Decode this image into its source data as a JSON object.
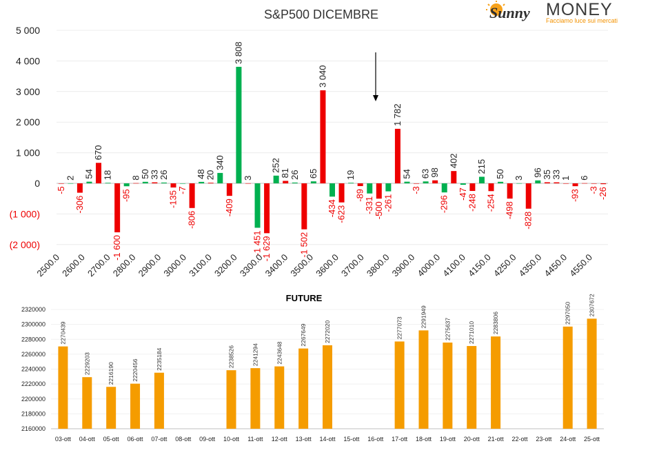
{
  "logo": {
    "brand_left": "Sunny",
    "brand_right": "MONEY",
    "tagline": "Facciamo luce sui mercati"
  },
  "chart_data": [
    {
      "type": "bar",
      "title": "S&P500 DICEMBRE",
      "ylim": [
        -2000,
        5000
      ],
      "yticks": [
        5000,
        4000,
        3000,
        2000,
        1000,
        0,
        -1000,
        -2000
      ],
      "ytick_labels": [
        "5 000",
        "4 000",
        "3 000",
        "2 000",
        "1 000",
        "0",
        "(1 000)",
        "(2 000)"
      ],
      "grid": true,
      "x_labels": [
        "2500.0",
        "2600.0",
        "2700.0",
        "2800.0",
        "2900.0",
        "3000.0",
        "3100.0",
        "3200.0",
        "3300.0",
        "3400.0",
        "3500.0",
        "3600.0",
        "3700.0",
        "3800.0",
        "3900.0",
        "4000.0",
        "4100.0",
        "4150.0",
        "4250.0",
        "4350.0",
        "4450.0",
        "4550.0"
      ],
      "colors": {
        "red": "#ee0000",
        "green": "#00b050",
        "positive_label": "#222222",
        "negative_label": "#ee0000"
      },
      "annotation": "down-arrow above 3800.0",
      "series": [
        {
          "color": "red",
          "values": [
            -5,
            -306,
            670,
            -1600,
            8,
            33,
            -135,
            -806,
            20,
            -409,
            3,
            -1629,
            81,
            -1502,
            3040,
            -623,
            -89,
            -500,
            1782,
            -3,
            98,
            402,
            -248,
            -254,
            -498,
            -828,
            35,
            33,
            1,
            -93,
            6,
            -3,
            -26
          ]
        },
        {
          "color": "green",
          "values": [
            2,
            54,
            18,
            -95,
            50,
            26,
            -7,
            48,
            340,
            3808,
            -1451,
            252,
            26,
            65,
            -434,
            19,
            -331,
            -261,
            54,
            63,
            -296,
            -47,
            215,
            50,
            3,
            96
          ]
        }
      ]
    },
    {
      "type": "bar",
      "title": "FUTURE",
      "ylim": [
        2160000,
        2320000
      ],
      "yticks": [
        2160000,
        2180000,
        2200000,
        2220000,
        2240000,
        2260000,
        2280000,
        2300000,
        2320000
      ],
      "color": "#f59c00",
      "categories": [
        "03-ott",
        "04-ott",
        "05-ott",
        "06-ott",
        "07-ott",
        "08-ott",
        "09-ott",
        "10-ott",
        "11-ott",
        "12-ott",
        "13-ott",
        "14-ott",
        "15-ott",
        "16-ott",
        "17-ott",
        "18-ott",
        "19-ott",
        "20-ott",
        "21-ott",
        "22-ott",
        "23-ott",
        "24-ott",
        "25-ott"
      ],
      "values": [
        2270439,
        2229203,
        2216190,
        2220456,
        2235184,
        null,
        null,
        2238526,
        2241294,
        2243648,
        2267649,
        2272020,
        null,
        null,
        2277073,
        2291949,
        2275637,
        2271010,
        2283806,
        null,
        null,
        2297050,
        2307672
      ]
    }
  ]
}
